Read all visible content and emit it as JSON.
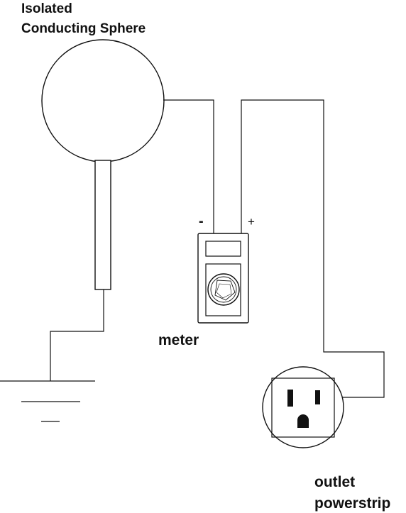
{
  "labels": {
    "sphere_line1": "Isolated",
    "sphere_line2": "Conducting Sphere",
    "meter": "meter",
    "negative": "-",
    "positive": "+",
    "outlet_line1": "outlet",
    "outlet_line2": "powerstrip"
  },
  "colors": {
    "stroke": "#111111",
    "background": "#ffffff"
  }
}
